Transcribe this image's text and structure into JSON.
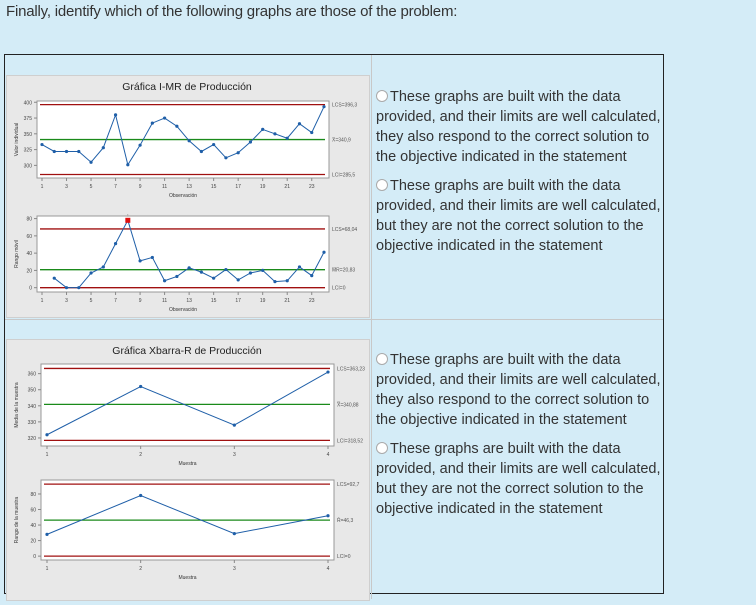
{
  "prompt": "Finally, identify which of the following graphs are those of the problem:",
  "options": [
    {
      "text": "These graphs are built with the data provided, and their limits are well calculated, they also respond to the correct solution to the objective indicated in the statement",
      "selected": false
    },
    {
      "text": "These graphs are built with the data provided, and their limits are well calculated, but they are not the correct solution to the objective indicated in the statement",
      "selected": false
    },
    {
      "text": "These graphs are built with the data provided, and their limits are well calculated, they also respond to the correct solution to the objective indicated in the statement",
      "selected": false
    },
    {
      "text": "These graphs are built with the data provided, and their limits are well calculated, but they are not the correct solution to the objective indicated in the statement",
      "selected": false
    }
  ],
  "colors": {
    "limit": "#a01010",
    "center": "#1a8a1a",
    "series": "#1f5fa8",
    "outlier": "#e01010"
  },
  "chart_data": [
    {
      "type": "line",
      "title": "Gráfica I-MR de Producción",
      "xlabel": "Observación",
      "ylabel": "Valor individual",
      "x": [
        1,
        2,
        3,
        4,
        5,
        6,
        7,
        8,
        9,
        10,
        11,
        12,
        13,
        14,
        15,
        16,
        17,
        18,
        19,
        20,
        21,
        22,
        23,
        24
      ],
      "xticks": [
        "1",
        "3",
        "5",
        "7",
        "9",
        "11",
        "13",
        "15",
        "17",
        "19",
        "21",
        "23"
      ],
      "yticks": [
        "300",
        "325",
        "350",
        "375",
        "400"
      ],
      "ylim": [
        280,
        402
      ],
      "values": [
        333,
        322,
        322,
        322,
        305,
        328,
        380,
        301,
        332,
        367,
        375,
        362,
        339,
        322,
        333,
        312,
        320,
        337,
        357,
        350,
        343,
        366,
        352,
        393
      ],
      "limits": {
        "ucl": 396.3,
        "center": 340.9,
        "lcl": 285.5
      },
      "limit_labels": {
        "ucl": "LCS=396,3",
        "center": "X̄=340,9",
        "lcl": "LCI=285,5"
      }
    },
    {
      "type": "line",
      "title": "",
      "xlabel": "Observación",
      "ylabel": "Rango móvil",
      "x": [
        2,
        3,
        4,
        5,
        6,
        7,
        8,
        9,
        10,
        11,
        12,
        13,
        14,
        15,
        16,
        17,
        18,
        19,
        20,
        21,
        22,
        23,
        24
      ],
      "xticks": [
        "1",
        "3",
        "5",
        "7",
        "9",
        "11",
        "13",
        "15",
        "17",
        "19",
        "21",
        "23"
      ],
      "yticks": [
        "0",
        "20",
        "40",
        "60",
        "80"
      ],
      "ylim": [
        -5,
        83
      ],
      "values": [
        11,
        0,
        0,
        17,
        24,
        51,
        78,
        31,
        35,
        8,
        13,
        23,
        18,
        11,
        21,
        9,
        17,
        20,
        7,
        8,
        24,
        14,
        41
      ],
      "outlier_index": 6,
      "outlier_label": "1",
      "limits": {
        "ucl": 68.04,
        "center": 20.83,
        "lcl": 0
      },
      "limit_labels": {
        "ucl": "LCS=68,04",
        "center": "M̄R=20,83",
        "lcl": "LCI=0"
      }
    },
    {
      "type": "line",
      "title": "Gráfica Xbarra-R de Producción",
      "xlabel": "Muestra",
      "ylabel": "Media de la muestra",
      "x": [
        1,
        2,
        3,
        4
      ],
      "xticks": [
        "1",
        "2",
        "3",
        "4"
      ],
      "yticks": [
        "320",
        "330",
        "340",
        "350",
        "360"
      ],
      "ylim": [
        315,
        366
      ],
      "values": [
        322,
        352,
        328,
        361
      ],
      "limits": {
        "ucl": 363.23,
        "center": 340.88,
        "lcl": 318.52
      },
      "limit_labels": {
        "ucl": "LCS=363,23",
        "center": "X̿=340,88",
        "lcl": "LCI=318,52"
      }
    },
    {
      "type": "line",
      "title": "",
      "xlabel": "Muestra",
      "ylabel": "Rango de la muestra",
      "x": [
        1,
        2,
        3,
        4
      ],
      "xticks": [
        "1",
        "2",
        "3",
        "4"
      ],
      "yticks": [
        "0",
        "20",
        "40",
        "60",
        "80"
      ],
      "ylim": [
        -5,
        98
      ],
      "values": [
        28,
        78,
        29,
        52
      ],
      "limits": {
        "ucl": 92.7,
        "center": 46.3,
        "lcl": 0
      },
      "limit_labels": {
        "ucl": "LCS=92,7",
        "center": "R̄=46,3",
        "lcl": "LCI=0"
      }
    }
  ]
}
